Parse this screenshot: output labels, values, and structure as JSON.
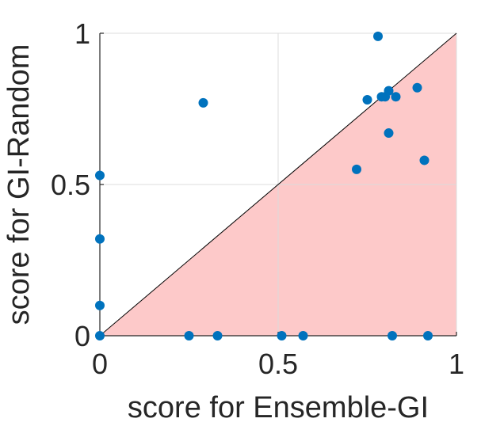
{
  "chart_data": {
    "type": "scatter",
    "xlabel": "score for Ensemble-GI",
    "ylabel": "score for GI-Random",
    "xlim": [
      0,
      1
    ],
    "ylim": [
      0,
      1
    ],
    "xticks": [
      "0",
      "0.5",
      "1"
    ],
    "yticks": [
      "0",
      "0.5",
      "1"
    ],
    "grid": true,
    "region": {
      "description": "shaded triangle below the diagonal y = x",
      "color": "#fdc9c9"
    },
    "diagonal": {
      "from": [
        0,
        0
      ],
      "to": [
        1,
        1
      ],
      "color": "#000000"
    },
    "marker_color": "#0072bd",
    "points": [
      {
        "x": 0.0,
        "y": 0.0
      },
      {
        "x": 0.0,
        "y": 0.1
      },
      {
        "x": 0.0,
        "y": 0.32
      },
      {
        "x": 0.0,
        "y": 0.53
      },
      {
        "x": 0.25,
        "y": 0.0
      },
      {
        "x": 0.33,
        "y": 0.0
      },
      {
        "x": 0.29,
        "y": 0.77
      },
      {
        "x": 0.51,
        "y": 0.0
      },
      {
        "x": 0.57,
        "y": 0.0
      },
      {
        "x": 0.72,
        "y": 0.55
      },
      {
        "x": 0.75,
        "y": 0.78
      },
      {
        "x": 0.78,
        "y": 0.99
      },
      {
        "x": 0.79,
        "y": 0.79
      },
      {
        "x": 0.8,
        "y": 0.79
      },
      {
        "x": 0.81,
        "y": 0.81
      },
      {
        "x": 0.81,
        "y": 0.67
      },
      {
        "x": 0.83,
        "y": 0.79
      },
      {
        "x": 0.82,
        "y": 0.0
      },
      {
        "x": 0.89,
        "y": 0.82
      },
      {
        "x": 0.91,
        "y": 0.58
      },
      {
        "x": 0.92,
        "y": 0.0
      }
    ]
  }
}
